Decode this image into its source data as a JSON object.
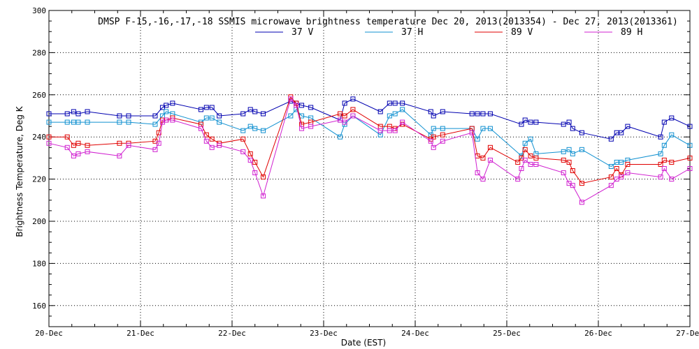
{
  "chart_data": {
    "type": "line",
    "title": "DMSP F-15,-16,-17,-18 SSMIS microwave brightness temperature Dec 20, 2013(2013354) - Dec 27, 2013(2013361)",
    "xlabel": "Date (EST)",
    "ylabel": "Brightness Temperature, Deg K",
    "xlim": [
      0,
      7
    ],
    "ylim": [
      150,
      300
    ],
    "x_tick_values": [
      0,
      1,
      2,
      3,
      4,
      5,
      6,
      7
    ],
    "x_tick_labels": [
      "20-Dec",
      "21-Dec",
      "22-Dec",
      "23-Dec",
      "24-Dec",
      "25-Dec",
      "26-Dec",
      "27-Dec"
    ],
    "y_ticks": [
      160,
      180,
      200,
      220,
      240,
      260,
      280,
      300
    ],
    "grid": true,
    "legend_position": "top-center",
    "series": [
      {
        "name": "37 V",
        "color": "#0000b0",
        "x": [
          0.0,
          0.2,
          0.27,
          0.32,
          0.42,
          0.77,
          0.87,
          1.16,
          1.24,
          1.28,
          1.35,
          1.66,
          1.72,
          1.78,
          1.86,
          2.12,
          2.2,
          2.25,
          2.34,
          2.64,
          2.7,
          2.76,
          2.86,
          3.18,
          3.23,
          3.32,
          3.62,
          3.72,
          3.78,
          3.86,
          4.17,
          4.2,
          4.3,
          4.62,
          4.68,
          4.74,
          4.82,
          5.16,
          5.2,
          5.26,
          5.32,
          5.62,
          5.68,
          5.72,
          5.82,
          6.14,
          6.2,
          6.25,
          6.32,
          6.68,
          6.72,
          6.8,
          7.0
        ],
        "y": [
          251,
          251,
          252,
          251,
          252,
          250,
          250,
          250,
          254,
          255,
          256,
          253,
          254,
          254,
          250,
          251,
          253,
          252,
          251,
          257,
          256,
          255,
          254,
          248,
          256,
          258,
          252,
          256,
          256,
          256,
          252,
          250,
          252,
          251,
          251,
          251,
          251,
          246,
          248,
          247,
          247,
          246,
          247,
          244,
          242,
          239,
          242,
          242,
          245,
          240,
          247,
          249,
          245
        ]
      },
      {
        "name": "37 H",
        "color": "#1090d0",
        "x": [
          0.0,
          0.2,
          0.27,
          0.32,
          0.42,
          0.77,
          0.87,
          1.16,
          1.24,
          1.28,
          1.35,
          1.66,
          1.72,
          1.78,
          1.86,
          2.12,
          2.2,
          2.25,
          2.34,
          2.64,
          2.7,
          2.76,
          2.86,
          3.18,
          3.23,
          3.32,
          3.62,
          3.72,
          3.78,
          3.86,
          4.17,
          4.2,
          4.3,
          4.62,
          4.68,
          4.74,
          4.82,
          5.16,
          5.2,
          5.26,
          5.32,
          5.62,
          5.68,
          5.72,
          5.82,
          6.14,
          6.2,
          6.25,
          6.32,
          6.68,
          6.72,
          6.8,
          7.0
        ],
        "y": [
          247,
          247,
          247,
          247,
          247,
          247,
          247,
          246,
          250,
          252,
          251,
          247,
          249,
          249,
          247,
          243,
          245,
          244,
          243,
          250,
          253,
          250,
          249,
          240,
          246,
          250,
          241,
          250,
          251,
          253,
          241,
          244,
          244,
          244,
          239,
          244,
          244,
          231,
          237,
          239,
          232,
          233,
          234,
          232,
          234,
          226,
          228,
          228,
          229,
          232,
          236,
          241,
          236
        ]
      },
      {
        "name": "89 V",
        "color": "#e00000",
        "x": [
          0.0,
          0.2,
          0.27,
          0.32,
          0.42,
          0.77,
          0.87,
          1.16,
          1.2,
          1.24,
          1.28,
          1.35,
          1.66,
          1.72,
          1.78,
          1.86,
          2.12,
          2.2,
          2.25,
          2.34,
          2.64,
          2.7,
          2.76,
          2.86,
          3.18,
          3.23,
          3.32,
          3.62,
          3.72,
          3.78,
          3.86,
          4.17,
          4.2,
          4.3,
          4.62,
          4.68,
          4.74,
          4.82,
          5.12,
          5.16,
          5.2,
          5.26,
          5.32,
          5.62,
          5.68,
          5.72,
          5.82,
          6.14,
          6.2,
          6.25,
          6.32,
          6.68,
          6.72,
          6.8,
          7.0
        ],
        "y": [
          240,
          240,
          236,
          237,
          236,
          237,
          237,
          238,
          242,
          248,
          248,
          249,
          246,
          241,
          239,
          237,
          239,
          232,
          228,
          221,
          259,
          256,
          246,
          247,
          251,
          250,
          253,
          245,
          245,
          244,
          246,
          239,
          240,
          241,
          244,
          231,
          230,
          235,
          228,
          230,
          234,
          231,
          230,
          229,
          228,
          224,
          218,
          221,
          225,
          222,
          227,
          227,
          229,
          228,
          230
        ]
      },
      {
        "name": "89 H",
        "color": "#d020d0",
        "x": [
          0.0,
          0.2,
          0.27,
          0.32,
          0.42,
          0.77,
          0.87,
          1.16,
          1.2,
          1.24,
          1.28,
          1.35,
          1.66,
          1.72,
          1.78,
          1.86,
          2.12,
          2.2,
          2.25,
          2.34,
          2.64,
          2.7,
          2.76,
          2.86,
          3.18,
          3.23,
          3.32,
          3.62,
          3.72,
          3.78,
          3.86,
          4.17,
          4.2,
          4.3,
          4.62,
          4.68,
          4.74,
          4.82,
          5.12,
          5.16,
          5.2,
          5.26,
          5.32,
          5.62,
          5.68,
          5.72,
          5.82,
          6.14,
          6.2,
          6.25,
          6.32,
          6.68,
          6.72,
          6.8,
          7.0
        ],
        "y": [
          237,
          235,
          231,
          232,
          233,
          231,
          236,
          234,
          237,
          247,
          248,
          248,
          244,
          238,
          235,
          236,
          233,
          229,
          223,
          212,
          258,
          255,
          244,
          245,
          248,
          247,
          250,
          243,
          243,
          243,
          247,
          238,
          235,
          238,
          242,
          223,
          220,
          229,
          220,
          225,
          229,
          227,
          227,
          223,
          218,
          217,
          209,
          217,
          220,
          221,
          223,
          221,
          225,
          220,
          225
        ]
      }
    ]
  }
}
